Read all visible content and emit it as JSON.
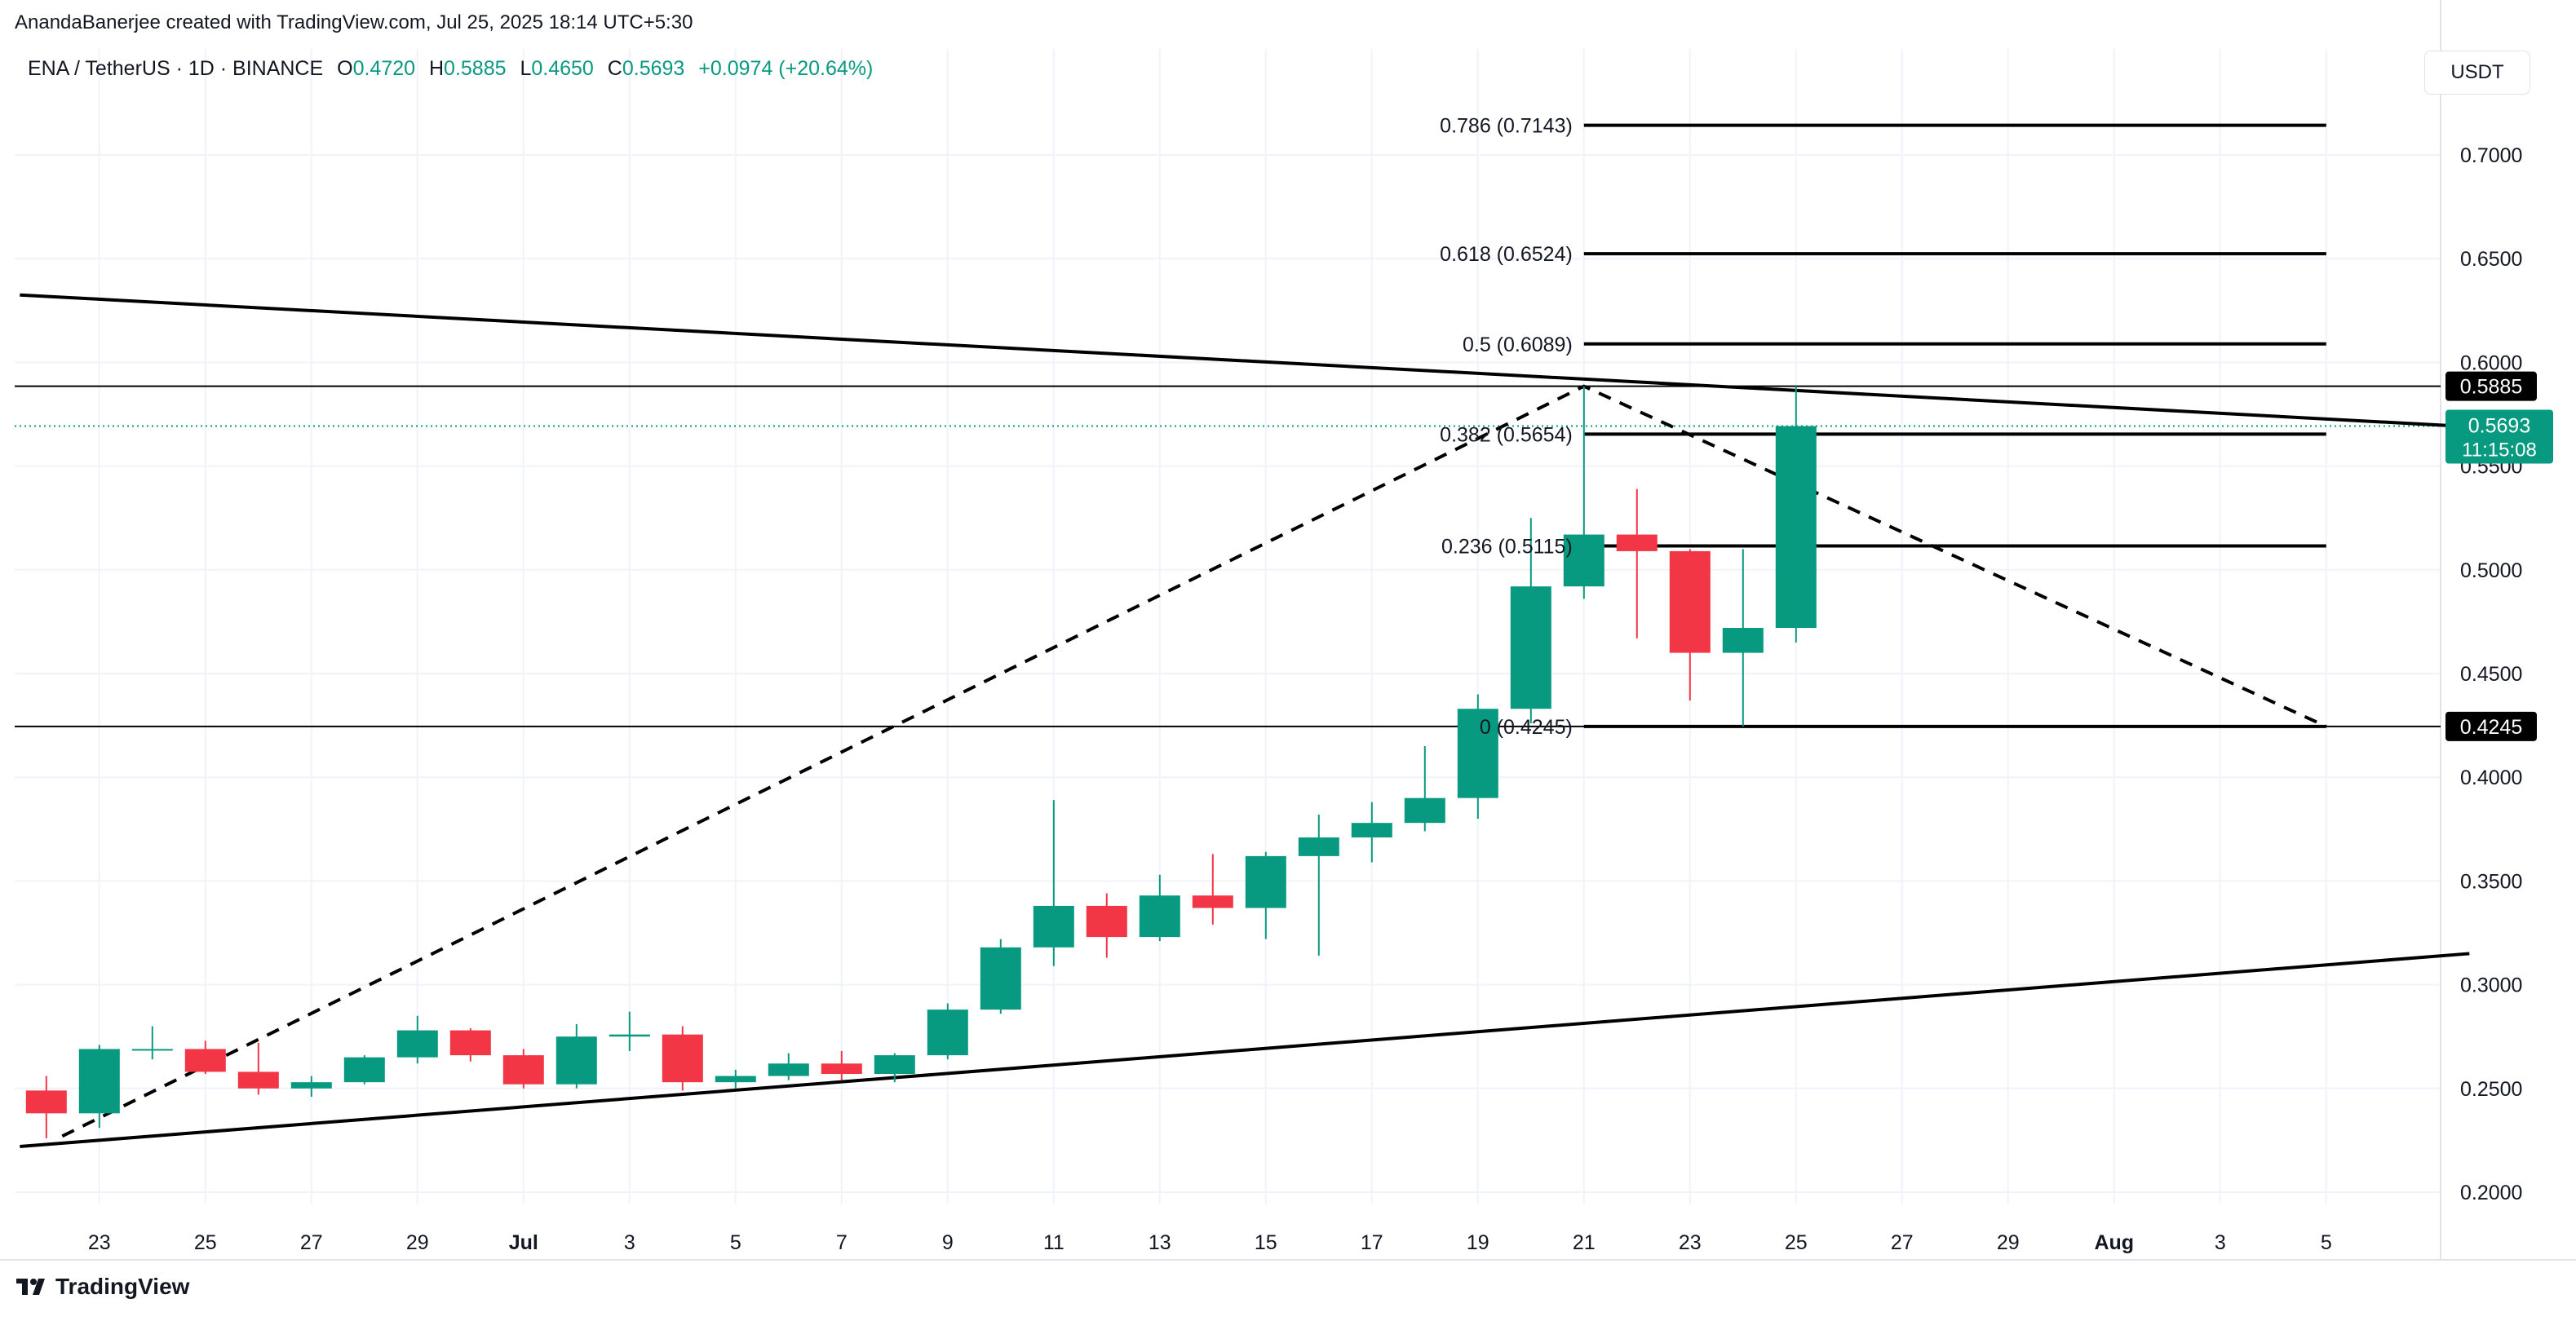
{
  "header": {
    "credit": "AnandaBanerjee created with TradingView.com, Jul 25, 2025 18:14 UTC+5:30",
    "symbol": "ENA / TetherUS · 1D · BINANCE",
    "o_label": "O",
    "o_value": "0.4720",
    "h_label": "H",
    "h_value": "0.5885",
    "l_label": "L",
    "l_value": "0.4650",
    "c_label": "C",
    "c_value": "0.5693",
    "change": "+0.0974 (+20.64%)"
  },
  "currency": "USDT",
  "brand": "TradingView",
  "colors": {
    "up": "#089981",
    "down": "#f23645",
    "line": "#000000",
    "grid": "#f0f3fa",
    "text": "#131722"
  },
  "chart_data": {
    "type": "candlestick",
    "symbol": "ENA/USDT",
    "timeframe": "1D",
    "ylim": [
      0.17,
      0.745
    ],
    "yticks": [
      "0.7000",
      "0.6500",
      "0.6000",
      "0.5500",
      "0.5000",
      "0.4500",
      "0.4000",
      "0.3500",
      "0.3000",
      "0.2500",
      "0.2000"
    ],
    "xticks": [
      {
        "i": 1,
        "label": "23"
      },
      {
        "i": 3,
        "label": "25"
      },
      {
        "i": 5,
        "label": "27"
      },
      {
        "i": 7,
        "label": "29"
      },
      {
        "i": 9,
        "label": "Jul",
        "bold": true
      },
      {
        "i": 11,
        "label": "3"
      },
      {
        "i": 13,
        "label": "5"
      },
      {
        "i": 15,
        "label": "7"
      },
      {
        "i": 17,
        "label": "9"
      },
      {
        "i": 19,
        "label": "11"
      },
      {
        "i": 21,
        "label": "13"
      },
      {
        "i": 23,
        "label": "15"
      },
      {
        "i": 25,
        "label": "17"
      },
      {
        "i": 27,
        "label": "19"
      },
      {
        "i": 29,
        "label": "21"
      },
      {
        "i": 31,
        "label": "23"
      },
      {
        "i": 33,
        "label": "25"
      },
      {
        "i": 35,
        "label": "27"
      },
      {
        "i": 37,
        "label": "29"
      },
      {
        "i": 39,
        "label": "Aug",
        "bold": true
      },
      {
        "i": 41,
        "label": "3"
      },
      {
        "i": 43,
        "label": "5"
      }
    ],
    "candles": [
      {
        "d": "Jun 22",
        "o": 0.249,
        "h": 0.256,
        "l": 0.226,
        "c": 0.238
      },
      {
        "d": "Jun 23",
        "o": 0.238,
        "h": 0.271,
        "l": 0.231,
        "c": 0.269
      },
      {
        "d": "Jun 24",
        "o": 0.269,
        "h": 0.28,
        "l": 0.264,
        "c": 0.269
      },
      {
        "d": "Jun 25",
        "o": 0.269,
        "h": 0.273,
        "l": 0.257,
        "c": 0.258
      },
      {
        "d": "Jun 26",
        "o": 0.258,
        "h": 0.272,
        "l": 0.247,
        "c": 0.25
      },
      {
        "d": "Jun 27",
        "o": 0.25,
        "h": 0.256,
        "l": 0.246,
        "c": 0.253
      },
      {
        "d": "Jun 28",
        "o": 0.253,
        "h": 0.266,
        "l": 0.252,
        "c": 0.265
      },
      {
        "d": "Jun 29",
        "o": 0.265,
        "h": 0.285,
        "l": 0.262,
        "c": 0.278
      },
      {
        "d": "Jun 30",
        "o": 0.278,
        "h": 0.279,
        "l": 0.263,
        "c": 0.266
      },
      {
        "d": "Jul 1",
        "o": 0.266,
        "h": 0.269,
        "l": 0.25,
        "c": 0.252
      },
      {
        "d": "Jul 2",
        "o": 0.252,
        "h": 0.281,
        "l": 0.25,
        "c": 0.275
      },
      {
        "d": "Jul 3",
        "o": 0.275,
        "h": 0.287,
        "l": 0.268,
        "c": 0.276
      },
      {
        "d": "Jul 4",
        "o": 0.276,
        "h": 0.28,
        "l": 0.249,
        "c": 0.253
      },
      {
        "d": "Jul 5",
        "o": 0.253,
        "h": 0.259,
        "l": 0.25,
        "c": 0.256
      },
      {
        "d": "Jul 6",
        "o": 0.256,
        "h": 0.267,
        "l": 0.254,
        "c": 0.262
      },
      {
        "d": "Jul 7",
        "o": 0.262,
        "h": 0.268,
        "l": 0.254,
        "c": 0.257
      },
      {
        "d": "Jul 8",
        "o": 0.257,
        "h": 0.267,
        "l": 0.253,
        "c": 0.266
      },
      {
        "d": "Jul 9",
        "o": 0.266,
        "h": 0.291,
        "l": 0.264,
        "c": 0.288
      },
      {
        "d": "Jul 10",
        "o": 0.288,
        "h": 0.322,
        "l": 0.286,
        "c": 0.318
      },
      {
        "d": "Jul 11",
        "o": 0.318,
        "h": 0.389,
        "l": 0.309,
        "c": 0.338
      },
      {
        "d": "Jul 12",
        "o": 0.338,
        "h": 0.344,
        "l": 0.313,
        "c": 0.323
      },
      {
        "d": "Jul 13",
        "o": 0.323,
        "h": 0.353,
        "l": 0.321,
        "c": 0.343
      },
      {
        "d": "Jul 14",
        "o": 0.343,
        "h": 0.363,
        "l": 0.329,
        "c": 0.337
      },
      {
        "d": "Jul 15",
        "o": 0.337,
        "h": 0.364,
        "l": 0.322,
        "c": 0.362
      },
      {
        "d": "Jul 16",
        "o": 0.362,
        "h": 0.382,
        "l": 0.314,
        "c": 0.371
      },
      {
        "d": "Jul 17",
        "o": 0.371,
        "h": 0.388,
        "l": 0.359,
        "c": 0.378
      },
      {
        "d": "Jul 18",
        "o": 0.378,
        "h": 0.415,
        "l": 0.374,
        "c": 0.39
      },
      {
        "d": "Jul 19",
        "o": 0.39,
        "h": 0.44,
        "l": 0.38,
        "c": 0.433
      },
      {
        "d": "Jul 20",
        "o": 0.433,
        "h": 0.525,
        "l": 0.426,
        "c": 0.492
      },
      {
        "d": "Jul 21",
        "o": 0.492,
        "h": 0.5885,
        "l": 0.486,
        "c": 0.517
      },
      {
        "d": "Jul 22",
        "o": 0.517,
        "h": 0.539,
        "l": 0.467,
        "c": 0.509
      },
      {
        "d": "Jul 23",
        "o": 0.509,
        "h": 0.51,
        "l": 0.437,
        "c": 0.46
      },
      {
        "d": "Jul 24",
        "o": 0.46,
        "h": 0.51,
        "l": 0.4245,
        "c": 0.472
      },
      {
        "d": "Jul 25",
        "o": 0.472,
        "h": 0.5885,
        "l": 0.465,
        "c": 0.5693
      }
    ],
    "fib_levels": [
      {
        "ratio": "0.786",
        "price": 0.7143,
        "label": "0.786 (0.7143)"
      },
      {
        "ratio": "0.618",
        "price": 0.6524,
        "label": "0.618 (0.6524)"
      },
      {
        "ratio": "0.5",
        "price": 0.6089,
        "label": "0.5 (0.6089)"
      },
      {
        "ratio": "0.382",
        "price": 0.5654,
        "label": "0.382 (0.5654)"
      },
      {
        "ratio": "0.236",
        "price": 0.5115,
        "label": "0.236 (0.5115)"
      },
      {
        "ratio": "0",
        "price": 0.4245,
        "label": "0 (0.4245)"
      }
    ],
    "fib_span": {
      "from_i": 29,
      "to_i": 43
    },
    "fib_zigzag": [
      {
        "i": 0.3,
        "p": 0.227
      },
      {
        "i": 29,
        "p": 0.5885
      },
      {
        "i": 43,
        "p": 0.4245
      }
    ],
    "trendlines": [
      {
        "name": "upper-resistance-line",
        "p1": {
          "i": -0.5,
          "p": 0.6325
        },
        "p2": {
          "i": 45.7,
          "p": 0.569
        }
      },
      {
        "name": "lower-support-line",
        "p1": {
          "i": -0.5,
          "p": 0.222
        },
        "p2": {
          "i": 45.7,
          "p": 0.315
        }
      }
    ],
    "hlines": [
      {
        "name": "high-line",
        "price": 0.5885,
        "label": "0.5885"
      },
      {
        "name": "low-line",
        "price": 0.4245,
        "label": "0.4245"
      }
    ],
    "last_price": {
      "price": 0.5693,
      "label": "0.5693",
      "countdown": "11:15:08"
    }
  }
}
